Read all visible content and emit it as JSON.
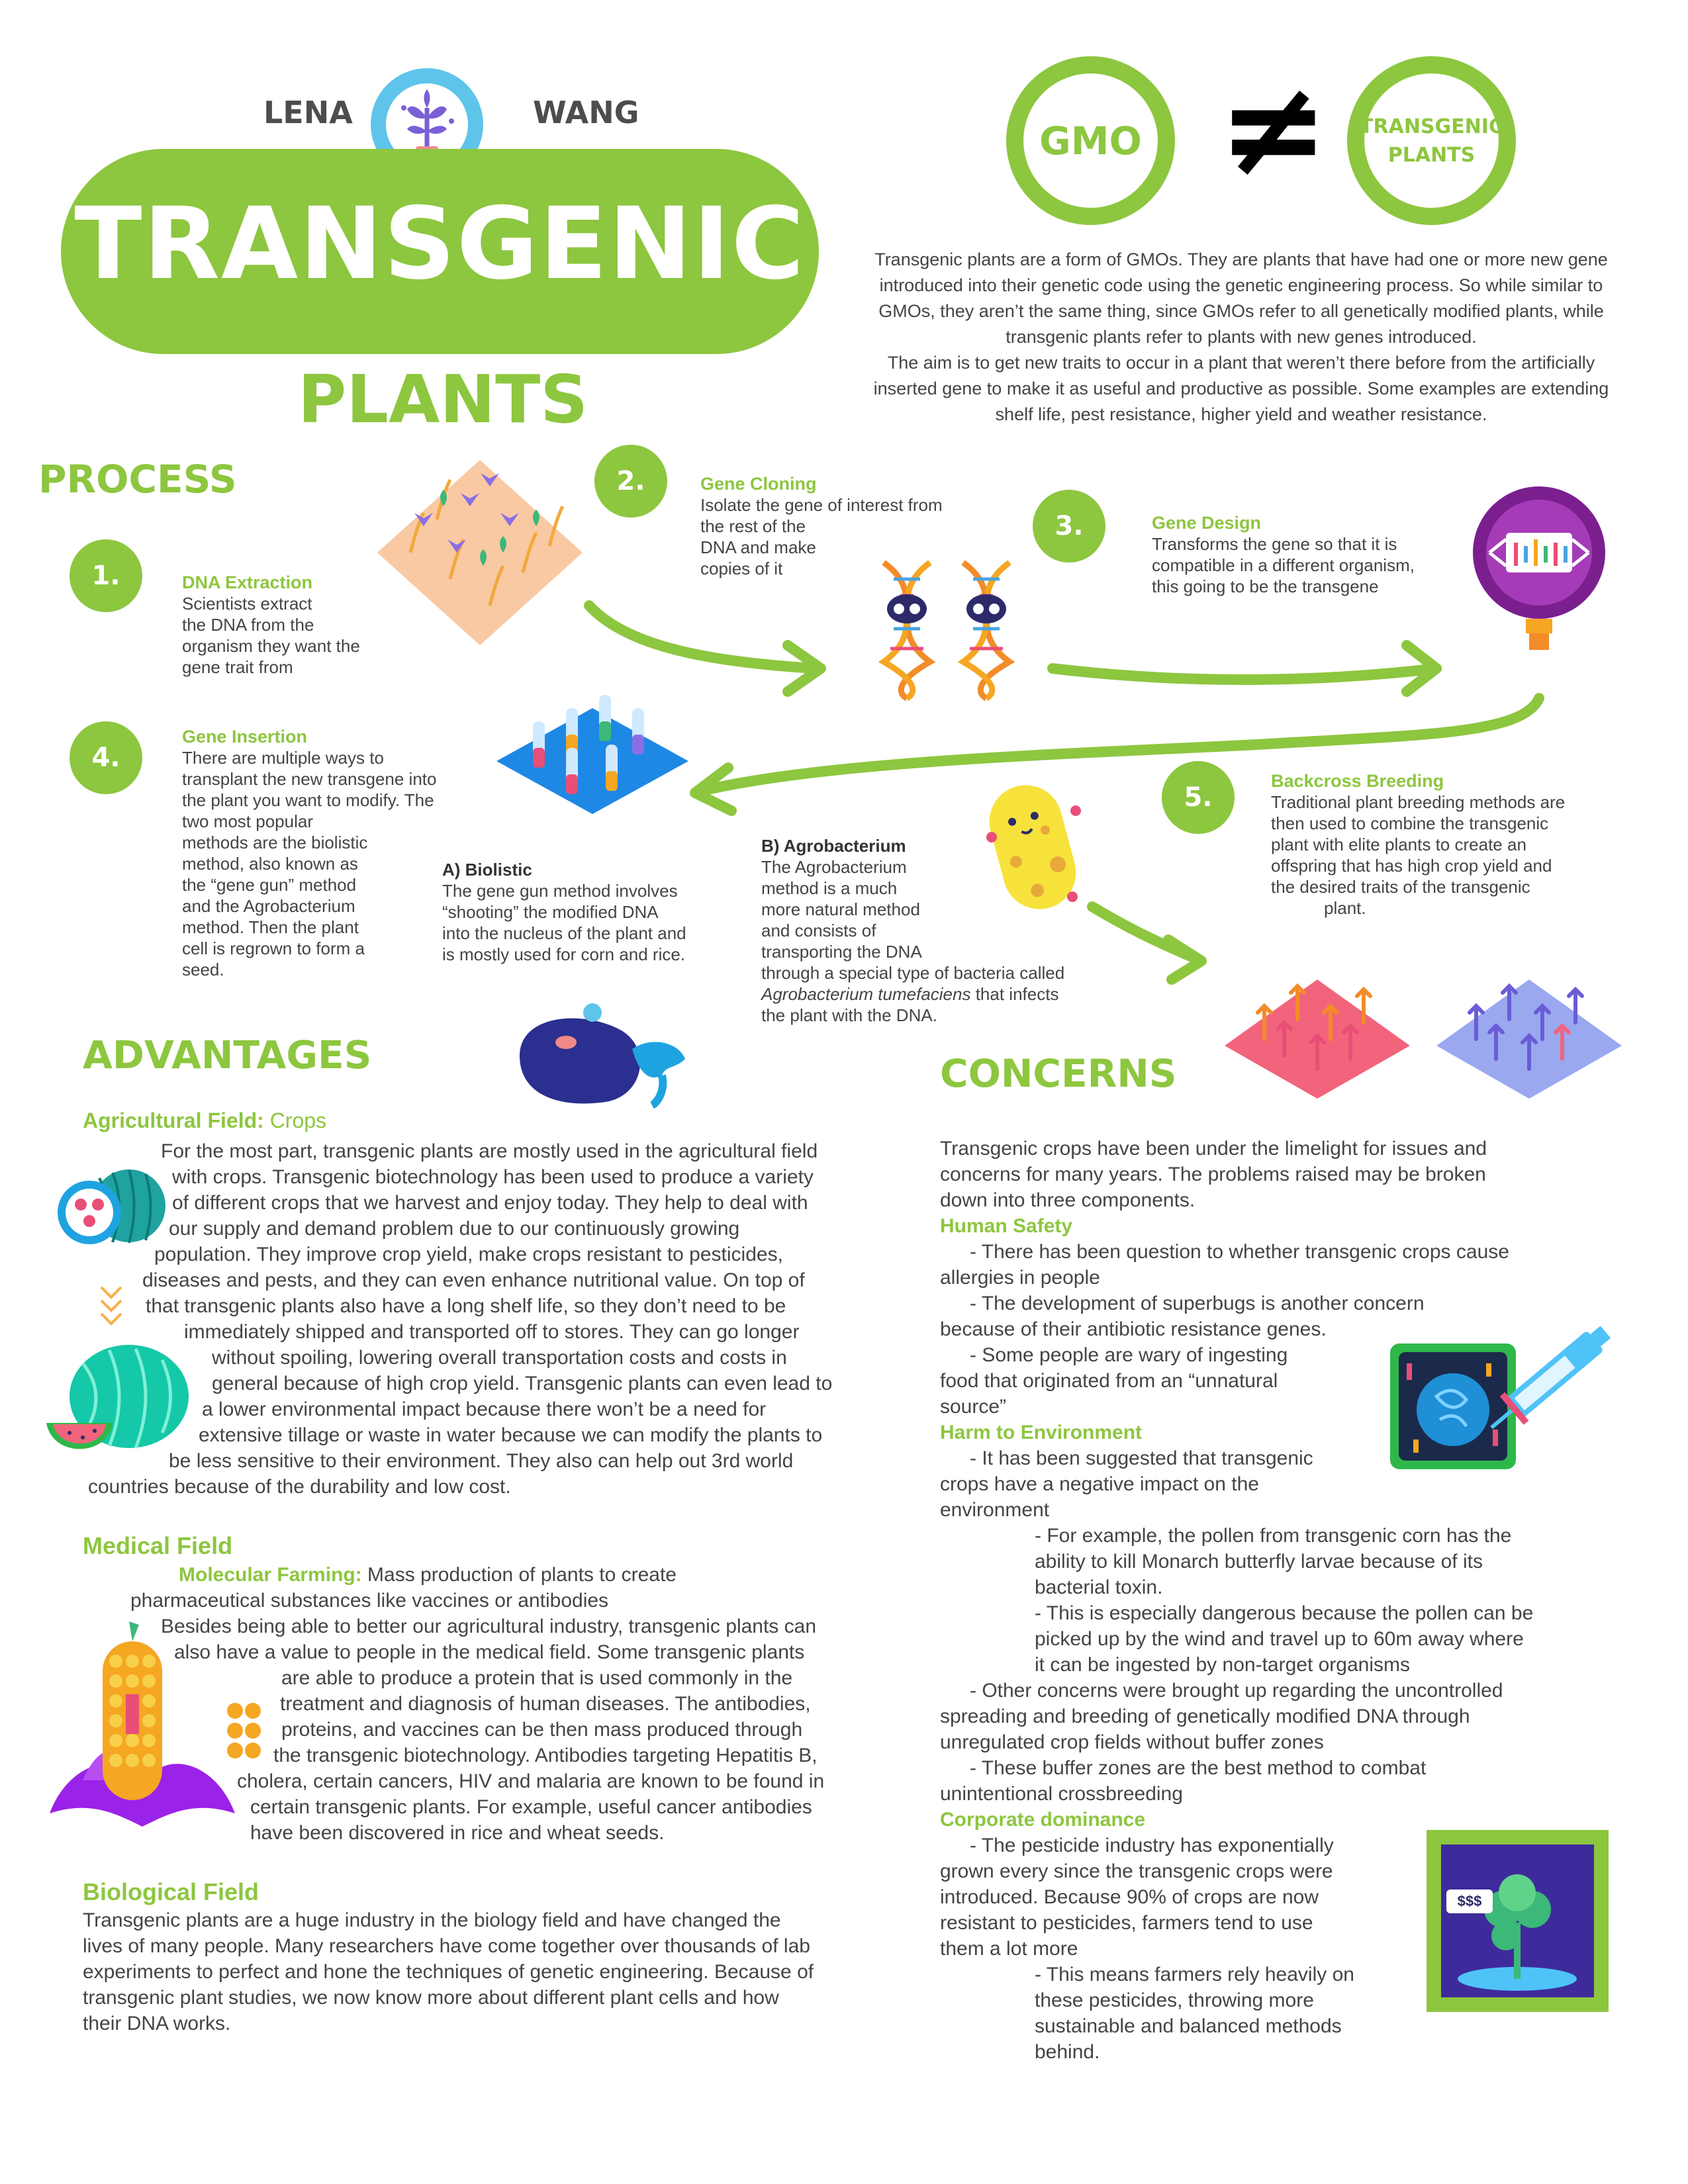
{
  "header": {
    "first_name": "LENA",
    "last_name": "WANG",
    "title": "TRANSGENIC",
    "subtitle": "PLANTS"
  },
  "gmo_compare": {
    "left": "GMO",
    "symbol": "≠",
    "right_line1": "TRANSGENIC",
    "right_line2": "PLANTS"
  },
  "intro": {
    "lines": [
      "Transgenic plants are a form of GMOs. They are plants that have had one or more new gene",
      "introduced into their genetic code using the genetic engineering process. So while similar to",
      "GMOs, they aren’t the same thing, since GMOs refer to all genetically modified plants, while",
      "transgenic plants refer to plants with new genes introduced.",
      "The aim is to get new traits to occur in a plant that weren’t there before from the artificially",
      "inserted gene to make it as useful and productive as possible. Some examples are extending",
      "shelf life, pest resistance, higher yield and weather resistance."
    ]
  },
  "process": {
    "heading": "PROCESS",
    "steps": [
      {
        "num": "1.",
        "title": "DNA Extraction",
        "lines": [
          "Scientists extract",
          "the DNA from the",
          "organism they want the",
          "gene trait from"
        ]
      },
      {
        "num": "2.",
        "title": "Gene Cloning",
        "lines": [
          "Isolate the gene of interest from",
          "the rest of the",
          "DNA and make",
          "copies of it"
        ]
      },
      {
        "num": "3.",
        "title": "Gene Design",
        "lines": [
          "Transforms the gene so that it is",
          "compatible in a different organism,",
          "this going to be the transgene"
        ]
      },
      {
        "num": "4.",
        "title": "Gene Insertion",
        "lines": [
          "There are multiple ways to",
          "transplant the new transgene into",
          "the plant you want to modify. The",
          "two most popular",
          "methods are the biolistic",
          "method, also known as",
          "the “gene gun” method",
          "and the Agrobacterium",
          "method. Then the plant",
          "cell is regrown to form a",
          "seed."
        ]
      },
      {
        "num": "5.",
        "title": "Backcross Breeding",
        "lines": [
          "Traditional plant breeding methods are",
          "then used to combine the transgenic",
          "plant with elite plants to create an",
          "offspring that has high crop yield and",
          "the desired traits of the transgenic",
          "plant."
        ]
      }
    ],
    "biolistic": {
      "title": "A) Biolistic",
      "lines": [
        "The gene gun method involves",
        "“shooting” the modified DNA",
        "into the nucleus of the plant and",
        "is mostly used for corn and rice."
      ]
    },
    "agro": {
      "title": "B) Agrobacterium",
      "lines": [
        "The Agrobacterium",
        "method is a much",
        "more natural method",
        "and consists of",
        "transporting the DNA",
        "through a special type of bacteria called"
      ],
      "italic": "Agrobacterium tumefaciens",
      "italic_tail": " that infects",
      "last": "the plant with the DNA."
    }
  },
  "advantages": {
    "heading": "ADVANTAGES",
    "agri_title": "Agricultural Field:",
    "agri_title_tail": " Crops",
    "agri_lines": [
      "For the most part, transgenic plants are mostly used in the agricultural field",
      "with crops. Transgenic biotechnology has been used to produce a variety",
      "of different crops that we harvest and enjoy today. They help to deal with",
      "our supply and demand problem due to our continuously growing",
      "population. They improve crop yield, make crops resistant to pesticides,",
      "diseases and pests, and they can even enhance nutritional value. On top of",
      "that transgenic plants also have a long shelf life, so they don’t need to be",
      "immediately shipped and transported off to stores. They can go longer",
      "without spoiling, lowering overall transportation costs and costs in",
      "general because of high crop yield. Transgenic plants can even lead to",
      "a lower environmental impact because there won’t be a need for",
      "extensive tillage or waste in water because we can modify the plants to",
      "be less sensitive to their environment. They also can help out 3rd world",
      "countries because of the durability and low cost."
    ],
    "med_title": "Medical Field",
    "med_mf_label": "Molecular Farming:",
    "med_mf_text": " Mass production of plants to create",
    "med_mf_line2": "pharmaceutical substances like vaccines or antibodies",
    "med_lines": [
      "Besides being able to better our agricultural industry, transgenic plants can",
      "also have a value to people in the medical field. Some transgenic plants",
      "are able to produce a protein that is used commonly in the",
      "treatment and diagnosis of human diseases. The antibodies,",
      "proteins, and vaccines can be then mass produced through",
      "the transgenic biotechnology. Antibodies targeting Hepatitis B,",
      "cholera, certain cancers, HIV and malaria are known to be found in",
      "certain transgenic plants. For example, useful cancer antibodies",
      "have been discovered in rice and wheat seeds."
    ],
    "bio_title": "Biological Field",
    "bio_lines": [
      "Transgenic plants are a huge industry in the biology field and have changed the",
      "lives of many people. Many researchers have come together over thousands of lab",
      "experiments to perfect and hone the techniques of genetic engineering. Because of",
      "transgenic plant studies, we now know more about different plant cells and how",
      "their DNA works."
    ]
  },
  "concerns": {
    "heading": "CONCERNS",
    "intro_lines": [
      "Transgenic crops have been under the limelight for issues and",
      "concerns for many years. The problems raised may be broken",
      "down into three components."
    ],
    "human_title": "Human Safety",
    "human_lines": [
      "- There has been question to whether transgenic crops cause",
      "allergies in people",
      "- The development of superbugs is another concern",
      "because of their antibiotic resistance genes.",
      "- Some people are wary of ingesting",
      "food that originated from an “unnatural",
      "source”"
    ],
    "env_title": "Harm to Environment",
    "env_lines": [
      "- It has been suggested that transgenic",
      "crops have a negative impact on the",
      "environment",
      "- For example, the pollen from transgenic corn has the",
      "ability to kill Monarch butterfly larvae because of its",
      "bacterial toxin.",
      "- This is especially dangerous because the pollen can be",
      "picked up by the wind and travel up to 60m away where",
      "it can be ingested by non-target organisms",
      "- Other concerns were brought up regarding the uncontrolled",
      "spreading and breeding of genetically modified DNA through",
      "unregulated crop fields without buffer zones",
      "- These buffer zones are the best method to combat",
      "unintentional crossbreeding"
    ],
    "corp_title": "Corporate dominance",
    "corp_lines": [
      "- The pesticide industry has exponentially",
      "grown every since the transgenic crops were",
      "introduced. Because 90% of crops are now",
      "resistant to pesticides, farmers tend to use",
      "them a lot more",
      "- This means farmers rely heavily on",
      "these pesticides, throwing more",
      "sustainable and balanced methods",
      "behind."
    ],
    "money_label": "$$$"
  },
  "colors": {
    "accent": "#8dc63f",
    "text": "#444444"
  },
  "icons": [
    "sprout-icon",
    "garden-icon",
    "dna-icon",
    "gene-device-icon",
    "test-tubes-icon",
    "bacterium-icon",
    "crop-field-icon",
    "eggplant-icon",
    "fruit-icon",
    "watermelon-icon",
    "corn-icon",
    "syringe-icon",
    "money-plant-icon"
  ]
}
